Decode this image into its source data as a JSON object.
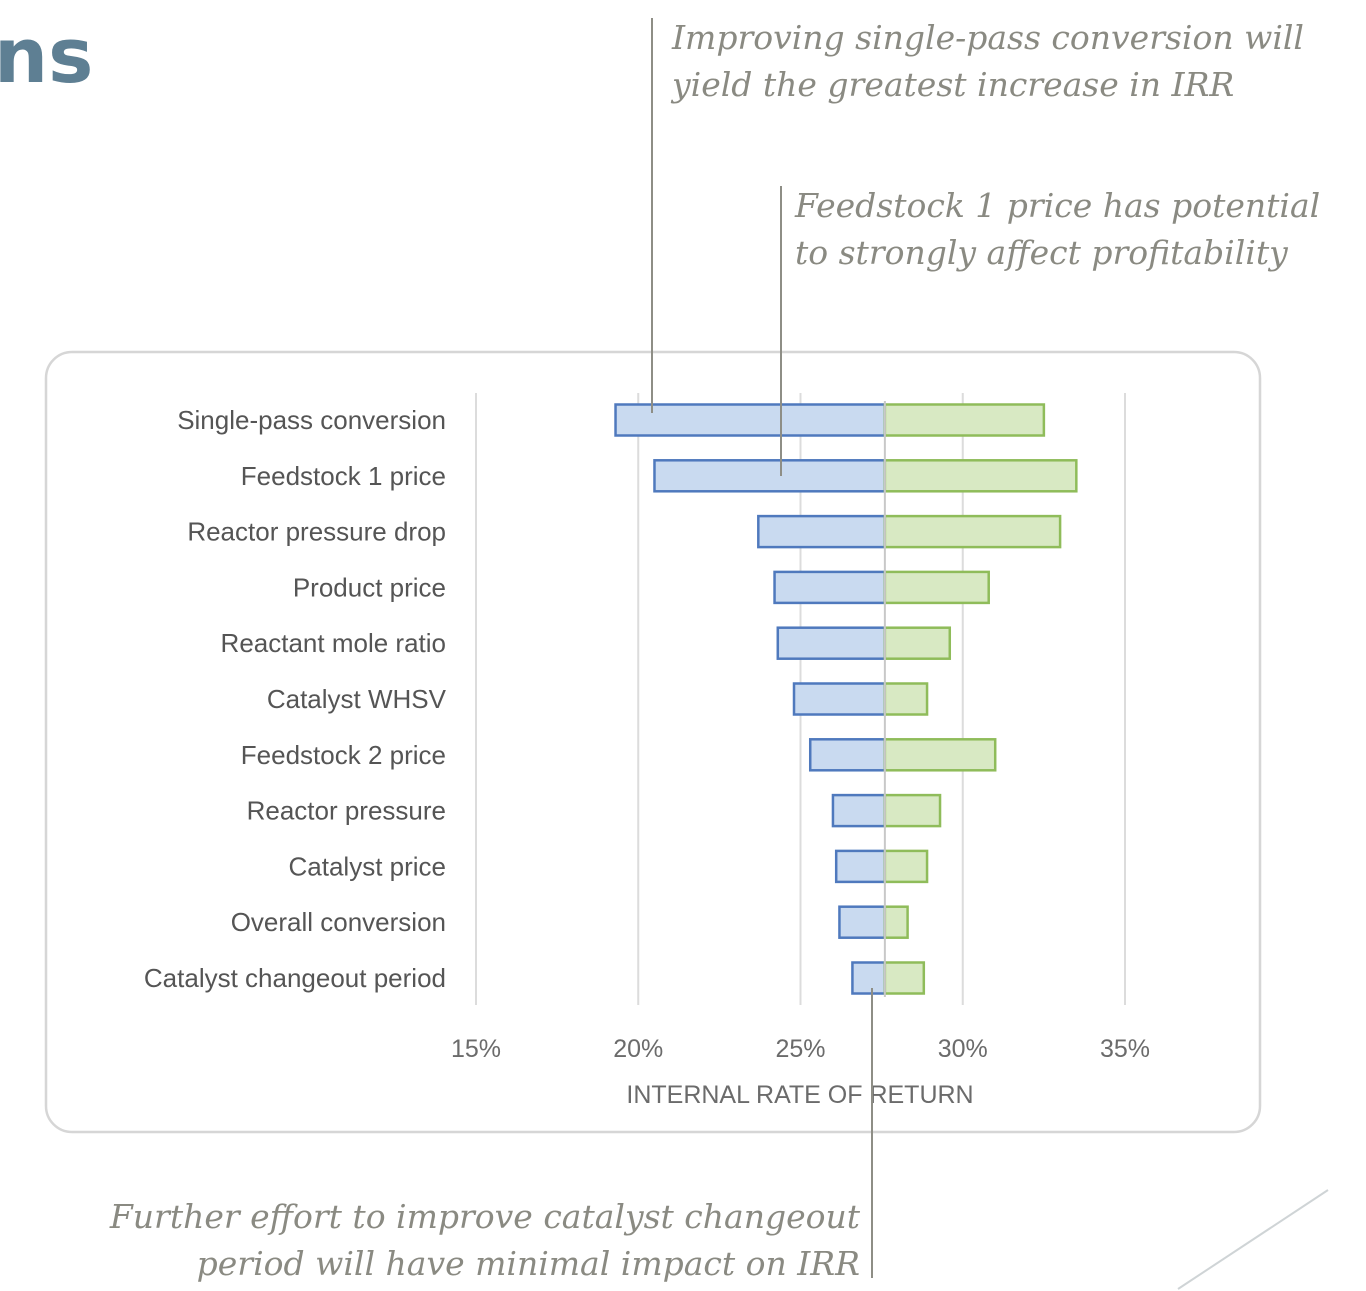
{
  "slide": {
    "title_fragment": "ns"
  },
  "callouts": [
    {
      "lines": [
        "Improving single-pass conversion will",
        "yield the greatest increase in IRR"
      ]
    },
    {
      "lines": [
        "Feedstock 1 price has potential",
        "to strongly affect profitability"
      ]
    },
    {
      "lines": [
        "Further effort to improve catalyst changeout",
        "period will have minimal impact on IRR"
      ]
    }
  ],
  "chart_data": {
    "type": "bar",
    "orientation": "horizontal",
    "style": "tornado",
    "title": "",
    "xlabel": "INTERNAL RATE OF RETURN",
    "ylabel": "",
    "xlim": [
      15,
      35
    ],
    "xticks": [
      15,
      20,
      25,
      30,
      35
    ],
    "xtick_labels": [
      "15%",
      "20%",
      "25%",
      "30%",
      "35%"
    ],
    "baseline": 27.6,
    "grid": true,
    "legend": "none",
    "colors": {
      "low": "#c9daf0",
      "low_border": "#4f79bd",
      "high": "#d8e9c3",
      "high_border": "#8fbc5a"
    },
    "categories": [
      "Single-pass conversion",
      "Feedstock 1 price",
      "Reactor pressure drop",
      "Product price",
      "Reactant mole ratio",
      "Catalyst WHSV",
      "Feedstock 2 price",
      "Reactor pressure",
      "Catalyst price",
      "Overall conversion",
      "Catalyst changeout period"
    ],
    "series": [
      {
        "values": [
          19.3,
          20.5,
          23.7,
          24.2,
          24.3,
          24.8,
          25.3,
          26.0,
          26.1,
          26.2,
          26.6
        ]
      },
      {
        "values": [
          32.5,
          33.5,
          33.0,
          30.8,
          29.6,
          28.9,
          31.0,
          29.3,
          28.9,
          28.3,
          28.8
        ]
      }
    ]
  }
}
